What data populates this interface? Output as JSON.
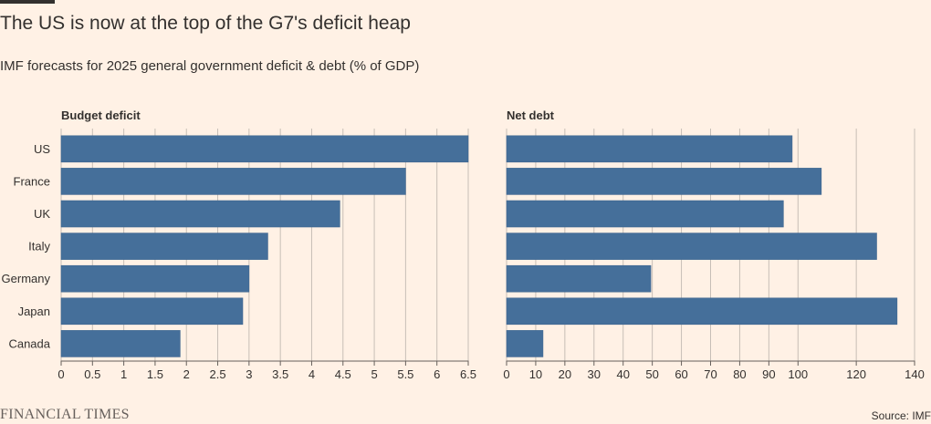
{
  "header": {
    "title": "The US is now at the top of the G7's deficit heap",
    "subtitle": "IMF forecasts for 2025 general government deficit & debt (% of GDP)"
  },
  "footer": {
    "brand": "FINANCIAL TIMES",
    "source": "Source: IMF"
  },
  "colors": {
    "bar": "#456F9A",
    "background": "#FFF1E5",
    "gridline": "#C7BEB6",
    "text": "#33302E"
  },
  "chart_data": [
    {
      "type": "bar",
      "orientation": "horizontal",
      "title": "Budget deficit",
      "categories": [
        "US",
        "France",
        "UK",
        "Italy",
        "Germany",
        "Japan",
        "Canada"
      ],
      "values": [
        6.5,
        5.5,
        4.45,
        3.3,
        3.0,
        2.9,
        1.9
      ],
      "xlim": [
        0,
        6.5
      ],
      "ticks": [
        "0",
        "0.5",
        "1",
        "1.5",
        "2",
        "2.5",
        "3",
        "3.5",
        "4",
        "4.5",
        "5",
        "5.5",
        "6",
        "6.5"
      ],
      "tick_values": [
        0,
        0.5,
        1,
        1.5,
        2,
        2.5,
        3,
        3.5,
        4,
        4.5,
        5,
        5.5,
        6,
        6.5
      ],
      "grid": true
    },
    {
      "type": "bar",
      "orientation": "horizontal",
      "title": "Net debt",
      "categories": [
        "US",
        "France",
        "UK",
        "Italy",
        "Germany",
        "Japan",
        "Canada"
      ],
      "values": [
        98,
        108,
        95,
        127,
        49.5,
        134,
        12.5
      ],
      "xlim": [
        0,
        140
      ],
      "ticks": [
        "0",
        "10",
        "20",
        "30",
        "40",
        "50",
        "60",
        "70",
        "80",
        "90",
        "100",
        "120",
        "140"
      ],
      "tick_values": [
        0,
        10,
        20,
        30,
        40,
        50,
        60,
        70,
        80,
        90,
        100,
        120,
        140
      ],
      "grid": true
    }
  ]
}
